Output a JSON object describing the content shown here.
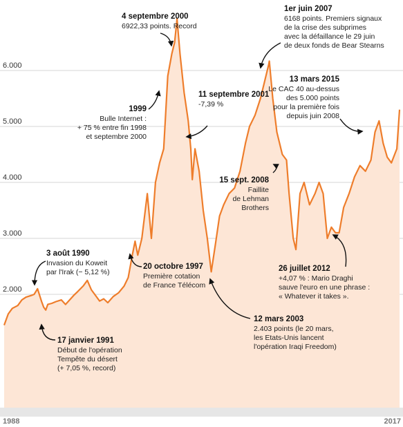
{
  "chart_data": {
    "type": "area",
    "title": "",
    "xlabel": "",
    "ylabel": "",
    "x_range": [
      1988,
      2017
    ],
    "x_ticks": [
      "1988",
      "2017"
    ],
    "ylim": [
      1000,
      7000
    ],
    "y_ticks": [
      "2.000",
      "3.000",
      "4.000",
      "5.000",
      "6.000"
    ],
    "y_tick_values": [
      2000,
      3000,
      4000,
      5000,
      6000
    ],
    "grid": "horizontal",
    "colors": {
      "line": "#ee7d2b",
      "fill": "#fde6d6",
      "grid": "#d4d4d4",
      "axis_band": "#e6e6e6"
    },
    "series": [
      {
        "x": [
          1988.0,
          1988.3,
          1988.6,
          1989.0,
          1989.3,
          1989.6,
          1990.0,
          1990.2,
          1990.45,
          1990.59,
          1990.75,
          1990.9,
          1991.05,
          1991.2,
          1991.5,
          1991.8,
          1992.2,
          1992.5,
          1992.8,
          1993.1,
          1993.4,
          1993.8,
          1994.1,
          1994.4,
          1994.7,
          1995.0,
          1995.3,
          1995.6,
          1996.0,
          1996.4,
          1996.8,
          1997.1,
          1997.4,
          1997.6,
          1997.8,
          1998.1,
          1998.5,
          1998.8,
          1999.1,
          1999.4,
          1999.7,
          2000.0,
          2000.3,
          2000.5,
          2000.68,
          2000.9,
          2001.2,
          2001.5,
          2001.69,
          2001.8,
          2002.0,
          2002.3,
          2002.6,
          2002.9,
          2003.19,
          2003.5,
          2003.8,
          2004.1,
          2004.5,
          2004.9,
          2005.3,
          2005.7,
          2006.0,
          2006.4,
          2006.8,
          2007.1,
          2007.4,
          2007.45,
          2007.7,
          2008.0,
          2008.4,
          2008.71,
          2008.9,
          2009.2,
          2009.4,
          2009.7,
          2010.0,
          2010.4,
          2010.8,
          2011.1,
          2011.4,
          2011.7,
          2012.0,
          2012.3,
          2012.57,
          2012.9,
          2013.3,
          2013.7,
          2014.1,
          2014.5,
          2014.9,
          2015.2,
          2015.5,
          2015.8,
          2016.1,
          2016.4,
          2016.8,
          2017.0
        ],
        "y": [
          1450,
          1650,
          1750,
          1800,
          1900,
          1950,
          1980,
          2000,
          2100,
          1990,
          1870,
          1770,
          1720,
          1820,
          1840,
          1870,
          1900,
          1820,
          1900,
          1980,
          2050,
          2150,
          2250,
          2080,
          1980,
          1880,
          1920,
          1850,
          1960,
          2030,
          2150,
          2300,
          2700,
          2950,
          2700,
          3000,
          3800,
          3000,
          4000,
          4350,
          4600,
          5900,
          6300,
          6500,
          6923,
          6300,
          5600,
          5100,
          4600,
          4050,
          4600,
          4200,
          3500,
          3000,
          2403,
          2900,
          3400,
          3600,
          3800,
          3900,
          4200,
          4700,
          5000,
          5200,
          5500,
          5800,
          6100,
          6168,
          5500,
          4900,
          4500,
          4400,
          3800,
          3000,
          2800,
          3800,
          4000,
          3600,
          3800,
          4000,
          3800,
          3000,
          3200,
          3100,
          3100,
          3550,
          3800,
          4100,
          4300,
          4200,
          4400,
          4900,
          5100,
          4700,
          4450,
          4350,
          4600,
          5300
        ]
      }
    ],
    "annotations": [
      {
        "key": "d1990",
        "x": 1990.59,
        "y": 2100,
        "title": "3 août 1990",
        "text": [
          "Invasion du Koweit",
          "par l'Irak (− 5,12 %)"
        ]
      },
      {
        "key": "d1991",
        "x": 1991.05,
        "y": 1720,
        "title": "17 janvier 1991",
        "text": [
          "Début de l'opération",
          "Tempête du désert",
          "(+ 7,05 %, record)"
        ]
      },
      {
        "key": "d1997",
        "x": 1997.8,
        "y": 2700,
        "title": "20 octobre 1997",
        "text": [
          "Première cotation",
          "de France Télécom"
        ]
      },
      {
        "key": "d1999",
        "x": 1999.1,
        "y": 4000,
        "title": "1999",
        "text": [
          "Bulle Internet :",
          "+ 75 % entre fin 1998",
          "et septembre 2000"
        ]
      },
      {
        "key": "d2000",
        "x": 2000.68,
        "y": 6923,
        "title": "4 septembre 2000",
        "text": [
          "6922,33 points. Record"
        ]
      },
      {
        "key": "d2001",
        "x": 2001.69,
        "y": 4600,
        "title": "11 septembre 2001",
        "text": [
          "-7,39 %"
        ]
      },
      {
        "key": "d2003",
        "x": 2003.19,
        "y": 2403,
        "title": "12 mars 2003",
        "text": [
          "2.403 points (le 20 mars,",
          "les Etats-Unis lancent",
          "l'opération Iraqi Freedom)"
        ]
      },
      {
        "key": "d2007",
        "x": 2007.45,
        "y": 6168,
        "title": "1er juin 2007",
        "text": [
          "6168 points. Premiers signaux",
          "de la crise des subprimes",
          "avec la défaillance le 29 juin",
          "de deux fonds de Bear Stearns"
        ]
      },
      {
        "key": "d2008",
        "x": 2008.71,
        "y": 4400,
        "title": "15 sept. 2008",
        "text": [
          "Faillite",
          "de Lehman",
          "Brothers"
        ]
      },
      {
        "key": "d2012",
        "x": 2012.57,
        "y": 3100,
        "title": "26 juillet 2012",
        "text": [
          "+4,07 % : Mario Draghi",
          "sauve l'euro en une phrase :",
          "« Whatever it takes »."
        ]
      },
      {
        "key": "d2015",
        "x": 2015.2,
        "y": 4900,
        "title": "13 mars 2015",
        "text": [
          "Le CAC 40 au-dessus",
          "des 5.000 points",
          "pour la première fois",
          "depuis juin 2008"
        ]
      }
    ]
  }
}
